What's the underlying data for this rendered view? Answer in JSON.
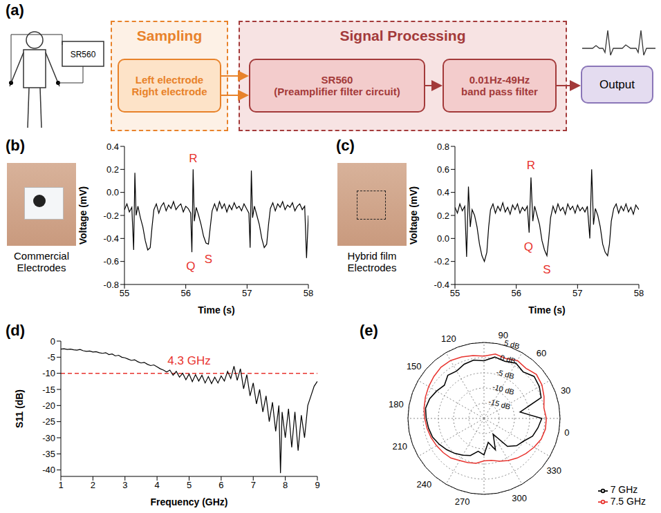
{
  "diagram": {
    "label": "(a)",
    "device": "SR560",
    "sampling": {
      "title": "Sampling",
      "box": [
        "Left electrode",
        "Right electrode"
      ]
    },
    "signal_processing": {
      "title": "Signal Processing",
      "boxes": [
        [
          "SR560",
          "(Preamplifier filter circuit)"
        ],
        [
          "0.01Hz-49Hz",
          "band pass filter"
        ]
      ]
    },
    "output": "Output"
  },
  "chart_data": [
    {
      "type": "line",
      "label": "(b)",
      "photo_caption": "Commercial Electrodes",
      "xlabel": "Time (s)",
      "ylabel": "Voltage (mV)",
      "xlim": [
        55,
        58
      ],
      "xticks": [
        55,
        56,
        57,
        58
      ],
      "ylim": [
        -0.8,
        0.4
      ],
      "yticks": [
        -0.8,
        -0.6,
        -0.4,
        -0.2,
        {
          "value": 0,
          "label": "0.0"
        },
        0.2,
        0.4
      ],
      "color": "#000000",
      "x": [
        55.0,
        55.04,
        55.08,
        55.12,
        55.15,
        55.17,
        55.19,
        55.22,
        55.26,
        55.3,
        55.34,
        55.38,
        55.42,
        55.45,
        55.48,
        55.52,
        55.56,
        55.6,
        55.64,
        55.68,
        55.72,
        55.76,
        55.8,
        55.84,
        55.88,
        55.92,
        55.96,
        56.0,
        56.04,
        56.08,
        56.1,
        56.12,
        56.14,
        56.17,
        56.21,
        56.25,
        56.29,
        56.33,
        56.37,
        56.4,
        56.43,
        56.47,
        56.51,
        56.55,
        56.59,
        56.63,
        56.67,
        56.71,
        56.75,
        56.79,
        56.83,
        56.87,
        56.91,
        56.95,
        56.99,
        57.03,
        57.05,
        57.07,
        57.09,
        57.12,
        57.16,
        57.2,
        57.24,
        57.28,
        57.32,
        57.35,
        57.38,
        57.42,
        57.46,
        57.5,
        57.54,
        57.58,
        57.62,
        57.66,
        57.7,
        57.74,
        57.78,
        57.82,
        57.86,
        57.9,
        57.94,
        57.97,
        58.0
      ],
      "values": [
        -0.15,
        -0.1,
        -0.17,
        -0.13,
        -0.5,
        0.17,
        -0.2,
        -0.12,
        -0.22,
        -0.3,
        -0.42,
        -0.5,
        -0.48,
        -0.3,
        -0.15,
        -0.1,
        -0.18,
        -0.12,
        -0.09,
        -0.16,
        -0.11,
        -0.14,
        -0.08,
        -0.15,
        -0.12,
        -0.1,
        -0.17,
        -0.12,
        -0.14,
        -0.18,
        -0.52,
        0.2,
        -0.25,
        -0.13,
        -0.2,
        -0.28,
        -0.38,
        -0.44,
        -0.45,
        -0.3,
        -0.16,
        -0.1,
        -0.16,
        -0.08,
        -0.14,
        -0.1,
        -0.17,
        -0.11,
        -0.15,
        -0.09,
        -0.14,
        -0.12,
        -0.16,
        -0.1,
        -0.14,
        -0.18,
        -0.48,
        0.19,
        -0.22,
        -0.12,
        -0.2,
        -0.28,
        -0.4,
        -0.48,
        -0.45,
        -0.28,
        -0.14,
        -0.09,
        -0.16,
        -0.1,
        -0.13,
        -0.08,
        -0.15,
        -0.11,
        -0.13,
        -0.09,
        -0.16,
        -0.12,
        -0.1,
        -0.15,
        -0.12,
        -0.57,
        -0.2
      ],
      "annotations": [
        {
          "text": "R",
          "x": 56.12,
          "y": 0.3
        },
        {
          "text": "Q",
          "x": 56.08,
          "y": -0.64
        },
        {
          "text": "S",
          "x": 56.37,
          "y": -0.58
        }
      ]
    },
    {
      "type": "line",
      "label": "(c)",
      "photo_caption": "Hybrid film Electrodes",
      "xlabel": "Time (s)",
      "ylabel": "Voltage (mV)",
      "xlim": [
        55,
        58
      ],
      "xticks": [
        55,
        56,
        57,
        58
      ],
      "ylim": [
        -0.4,
        0.8
      ],
      "yticks": [
        -0.4,
        -0.2,
        {
          "value": 0,
          "label": "0.0"
        },
        0.2,
        0.4,
        0.6,
        0.8
      ],
      "color": "#000000",
      "x": [
        55.0,
        55.04,
        55.08,
        55.12,
        55.16,
        55.19,
        55.22,
        55.25,
        55.28,
        55.32,
        55.36,
        55.4,
        55.44,
        55.48,
        55.52,
        55.55,
        55.58,
        55.62,
        55.66,
        55.7,
        55.74,
        55.78,
        55.82,
        55.86,
        55.9,
        55.94,
        55.98,
        56.02,
        56.06,
        56.1,
        56.14,
        56.18,
        56.21,
        56.24,
        56.27,
        56.3,
        56.34,
        56.38,
        56.42,
        56.46,
        56.5,
        56.53,
        56.56,
        56.6,
        56.64,
        56.68,
        56.72,
        56.76,
        56.8,
        56.84,
        56.88,
        56.92,
        56.96,
        57.0,
        57.04,
        57.08,
        57.12,
        57.16,
        57.2,
        57.23,
        57.26,
        57.29,
        57.33,
        57.37,
        57.41,
        57.45,
        57.49,
        57.52,
        57.55,
        57.59,
        57.63,
        57.67,
        57.71,
        57.75,
        57.79,
        57.83,
        57.87,
        57.91,
        57.95,
        58.0
      ],
      "values": [
        0.27,
        0.22,
        0.3,
        0.24,
        0.28,
        -0.16,
        0.45,
        0.1,
        0.25,
        0.2,
        0.1,
        -0.05,
        -0.15,
        -0.2,
        -0.12,
        0.1,
        0.25,
        0.3,
        0.22,
        0.28,
        0.24,
        0.31,
        0.23,
        0.27,
        0.21,
        0.29,
        0.25,
        0.3,
        0.22,
        0.27,
        0.24,
        0.28,
        0.05,
        0.53,
        0.15,
        0.28,
        0.2,
        0.12,
        -0.02,
        -0.1,
        -0.15,
        0.0,
        0.18,
        0.28,
        0.22,
        0.3,
        0.24,
        0.27,
        0.21,
        0.3,
        0.25,
        0.28,
        0.22,
        0.29,
        0.24,
        0.27,
        0.23,
        0.28,
        0.0,
        0.6,
        0.12,
        0.26,
        0.2,
        0.1,
        -0.05,
        -0.12,
        -0.15,
        -0.05,
        0.15,
        0.26,
        0.3,
        0.22,
        0.28,
        0.24,
        0.3,
        0.23,
        0.27,
        0.21,
        0.29,
        0.25
      ],
      "annotations": [
        {
          "text": "R",
          "x": 56.24,
          "y": 0.64
        },
        {
          "text": "Q",
          "x": 56.2,
          "y": -0.07
        },
        {
          "text": "S",
          "x": 56.5,
          "y": -0.27
        }
      ]
    },
    {
      "type": "line",
      "label": "(d)",
      "xlabel": "Frequency (GHz)",
      "ylabel": "S11 (dB)",
      "xlim": [
        1,
        9
      ],
      "xticks": [
        1,
        2,
        3,
        4,
        5,
        6,
        7,
        8,
        9
      ],
      "ylim": [
        -42,
        0
      ],
      "yticks": [
        0,
        -5,
        -10,
        -15,
        -20,
        -25,
        -30,
        -35,
        -40
      ],
      "color": "#000000",
      "reference_y": -10,
      "x": [
        1.0,
        1.1,
        1.2,
        1.3,
        1.4,
        1.5,
        1.6,
        1.7,
        1.8,
        1.9,
        2.0,
        2.1,
        2.2,
        2.3,
        2.4,
        2.5,
        2.6,
        2.7,
        2.8,
        2.9,
        3.0,
        3.1,
        3.2,
        3.3,
        3.4,
        3.5,
        3.6,
        3.7,
        3.8,
        3.9,
        4.0,
        4.1,
        4.2,
        4.3,
        4.4,
        4.5,
        4.6,
        4.7,
        4.8,
        4.9,
        5.0,
        5.1,
        5.2,
        5.3,
        5.4,
        5.5,
        5.6,
        5.7,
        5.8,
        5.9,
        6.0,
        6.1,
        6.2,
        6.3,
        6.4,
        6.5,
        6.6,
        6.7,
        6.8,
        6.9,
        7.0,
        7.1,
        7.2,
        7.3,
        7.4,
        7.5,
        7.6,
        7.7,
        7.8,
        7.85,
        7.9,
        8.0,
        8.1,
        8.2,
        8.3,
        8.4,
        8.5,
        8.6,
        8.7,
        8.8,
        8.9,
        9.0
      ],
      "values": [
        -2.5,
        -2.4,
        -2.6,
        -2.5,
        -2.7,
        -2.8,
        -2.6,
        -3.0,
        -3.2,
        -3.1,
        -3.4,
        -3.3,
        -3.6,
        -3.8,
        -3.6,
        -4.2,
        -4.0,
        -4.6,
        -4.4,
        -5.0,
        -5.2,
        -5.6,
        -6.0,
        -5.8,
        -6.4,
        -6.8,
        -6.6,
        -7.2,
        -7.6,
        -7.4,
        -8.0,
        -8.6,
        -9.0,
        -9.6,
        -9.0,
        -10.6,
        -9.4,
        -11.2,
        -10.0,
        -12.0,
        -10.2,
        -12.6,
        -10.4,
        -12.4,
        -10.6,
        -13.0,
        -11.0,
        -13.2,
        -11.2,
        -13.0,
        -10.8,
        -12.4,
        -9.4,
        -11.6,
        -7.8,
        -12.2,
        -8.6,
        -14.8,
        -10.4,
        -17.0,
        -13.0,
        -19.5,
        -15.0,
        -22.0,
        -17.0,
        -25.0,
        -19.0,
        -28.0,
        -20.0,
        -41.0,
        -22.0,
        -30.0,
        -21.0,
        -33.0,
        -22.0,
        -34.0,
        -23.0,
        -30.0,
        -20.0,
        -17.0,
        -14.0,
        -12.5
      ],
      "annotations": [
        {
          "text": "4.3 GHz",
          "x": 5.0,
          "y": -6
        }
      ]
    },
    {
      "type": "radar",
      "label": "(e)",
      "angles": [
        0,
        10,
        20,
        30,
        40,
        50,
        60,
        70,
        80,
        90,
        100,
        110,
        120,
        130,
        140,
        150,
        160,
        170,
        180,
        190,
        200,
        210,
        220,
        230,
        240,
        250,
        260,
        270,
        280,
        290,
        300,
        310,
        320,
        330,
        340,
        350
      ],
      "angle_ticks": [
        0,
        30,
        60,
        90,
        120,
        150,
        180,
        210,
        240,
        270,
        300,
        330
      ],
      "rlim": [
        -20,
        5
      ],
      "rticks": [
        {
          "value": -15,
          "label": "-15 dB"
        },
        {
          "value": -10,
          "label": "-10 dB"
        },
        {
          "value": -5,
          "label": "-5 dB"
        },
        {
          "value": 0,
          "label": "0 dB"
        },
        {
          "value": 5,
          "label": "5 dB"
        }
      ],
      "grid": true,
      "legend": "lower right",
      "series": [
        {
          "name": "7 GHz",
          "color": "#000000",
          "values": [
            -8,
            0,
            1,
            1.5,
            0,
            1,
            0,
            0.5,
            -1,
            -0.5,
            -1,
            -2,
            -1.5,
            -3,
            -2,
            -1,
            -0.5,
            -1,
            -1.5,
            -2,
            -3,
            -4,
            -5,
            -6,
            -7,
            -9,
            -8,
            -12,
            -9,
            -14,
            -8,
            -6,
            -5,
            -3,
            -2,
            -1
          ]
        },
        {
          "name": "7.5 GHz",
          "color": "#e8322d",
          "values": [
            0,
            1,
            2,
            2.5,
            1.5,
            2,
            1,
            1.5,
            0.5,
            1,
            1.5,
            2,
            2,
            1.5,
            1,
            0.5,
            0,
            -0.5,
            -1,
            -1.5,
            -2,
            -2.5,
            -3,
            -4,
            -4.5,
            -5,
            -6,
            -6,
            -5,
            -4,
            -3,
            -2,
            -1,
            0,
            0.5,
            0.5
          ]
        }
      ]
    }
  ]
}
